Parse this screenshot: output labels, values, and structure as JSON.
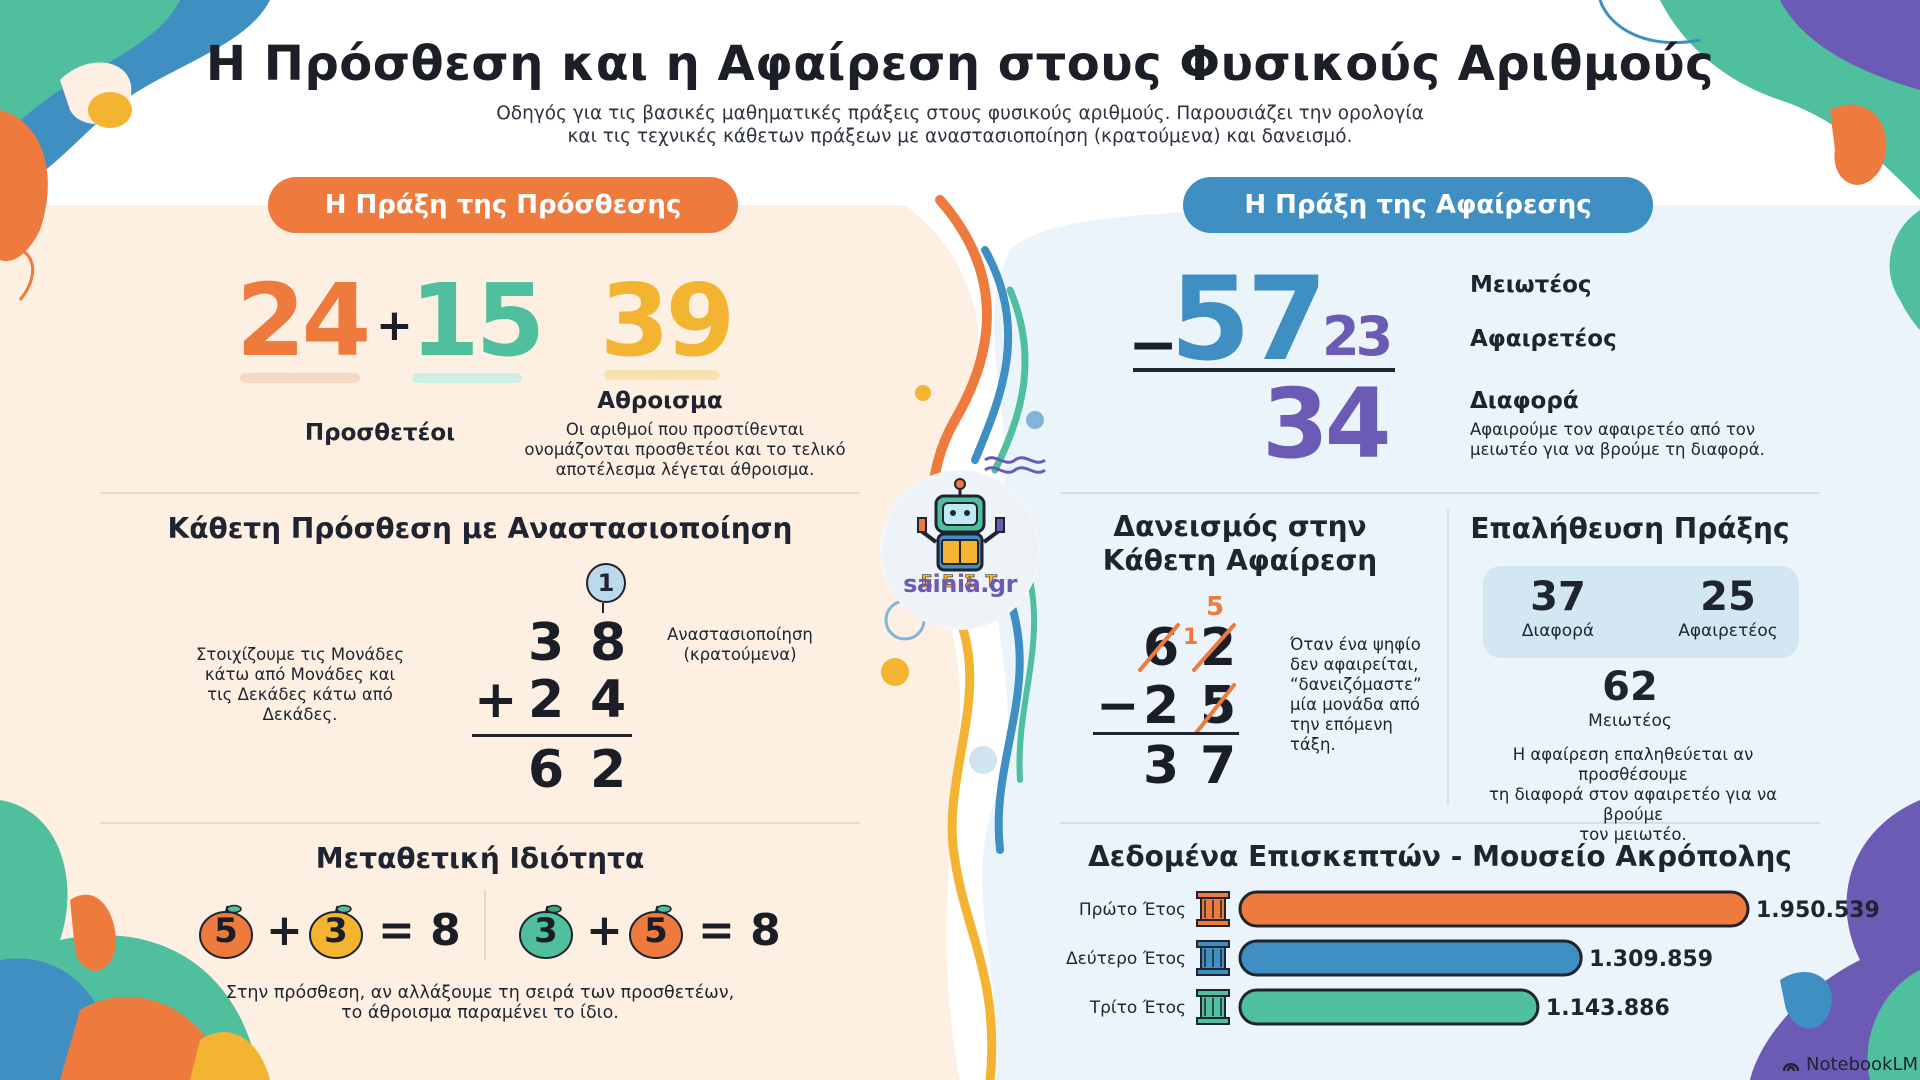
{
  "header": {
    "title": "Η Πρόσθεση και η Αφαίρεση στους Φυσικούς Αριθμούς",
    "subtitle_line1": "Οδηγός για τις βασικές μαθηματικές πράξεις στους φυσικούς αριθμούς. Παρουσιάζει την ορολογία",
    "subtitle_line2": "και τις τεχνικές κάθετων πράξεων με αναστασιοποίηση (κρατούμενα) και δανεισμό."
  },
  "addition": {
    "pill": "Η Πράξη της Πρόσθεσης",
    "addend1": "24",
    "plus": "+",
    "addend2": "15",
    "sum": "39",
    "addends_label": "Προσθετέοι",
    "sum_label": "Αθροισμα",
    "sum_desc_1": "Οι αριθμοί που προστίθενται",
    "sum_desc_2": "ονομάζονται προσθετέοι και το τελικό",
    "sum_desc_3": "αποτέλεσμα λέγεται άθροισμα.",
    "vertical_title": "Κάθετη Πρόσθεση με Αναστασιοποίηση",
    "align_note_1": "Στοιχίζουμε τις Μονάδες",
    "align_note_2": "κάτω από Μονάδες και",
    "align_note_3": "τις Δεκάδες κάτω από",
    "align_note_4": "Δεκάδες.",
    "carry": "1",
    "row1": [
      "3",
      "8"
    ],
    "row2_op": "+",
    "row2": [
      "2",
      "4"
    ],
    "result": [
      "6",
      "2"
    ],
    "carry_label_1": "Αναστασιοποίηση",
    "carry_label_2": "(κρατούμενα)",
    "commutative_title": "Μεταθετική Ιδιότητα",
    "left_eq": [
      "5",
      "+",
      "3",
      "= 8"
    ],
    "right_eq": [
      "3",
      "+",
      "5",
      "= 8"
    ],
    "commutative_note_1": "Στην πρόσθεση, αν αλλάξουμε τη σειρά των προσθετέων,",
    "commutative_note_2": "το άθροισμα παραμένει το ίδιο."
  },
  "subtraction": {
    "pill": "Η Πράξη της Αφαίρεσης",
    "minus": "−",
    "minuend": "57",
    "subtrahend": "23",
    "difference": "34",
    "minuend_label": "Μειωτέος",
    "subtrahend_label": "Αφαιρετέος",
    "difference_label": "Διαφορά",
    "difference_desc_1": "Αφαιρούμε τον αφαιρετέο από τον",
    "difference_desc_2": "μειωτέο για να βρούμε τη διαφορά.",
    "borrow_title_1": "Δανεισμός στην",
    "borrow_title_2": "Κάθετη Αφαίρεση",
    "borrow_top_new": "5",
    "borrow_small": "1",
    "borrow_row1": [
      "6",
      "2"
    ],
    "borrow_op": "−",
    "borrow_row2": [
      "2",
      "5"
    ],
    "borrow_result": [
      "3",
      "7"
    ],
    "borrow_note_1": "Όταν ένα ψηφίο",
    "borrow_note_2": "δεν αφαιρείται,",
    "borrow_note_3": "“δανειζόμαστε”",
    "borrow_note_4": "μία μονάδα από",
    "borrow_note_5": "την επόμενη τάξη.",
    "verify_title": "Επαλήθευση Πράξης",
    "verify_a_value": "37",
    "verify_a_label": "Διαφορά",
    "verify_b_value": "25",
    "verify_b_label": "Αφαιρετέος",
    "verify_total_value": "62",
    "verify_total_label": "Μειωτέος",
    "verify_note_1": "Η αφαίρεση επαληθεύεται αν προσθέσουμε",
    "verify_note_2": "τη διαφορά στον αφαιρετέο για να βρούμε",
    "verify_note_3": "τον μειωτέο."
  },
  "logo": {
    "text": "sainia.gr",
    "icon": "robot-reading-icon"
  },
  "chart_data": {
    "type": "bar",
    "orientation": "horizontal",
    "title": "Δεδομένα Επισκεπτών - Μουσείο Ακρόπολης",
    "categories": [
      "Πρώτο Έτος",
      "Δεύτερο Έτος",
      "Τρίτο Έτος"
    ],
    "values": [
      1950539,
      1309859,
      1143886
    ],
    "value_labels": [
      "1.950.539",
      "1.309.859",
      "1.143.886"
    ],
    "colors": [
      "#ef7a3d",
      "#3f8fc3",
      "#4fbf9e"
    ],
    "xlim": [
      0,
      1950539
    ]
  },
  "footer": {
    "brand": "NotebookLM"
  },
  "colors": {
    "orange": "#ef7a3d",
    "teal": "#4fbf9e",
    "yellow": "#f3b431",
    "blue": "#3f8fc3",
    "purple": "#6b5bb5",
    "cream": "#fdf0e3",
    "light_blue": "#eaf4fa"
  }
}
